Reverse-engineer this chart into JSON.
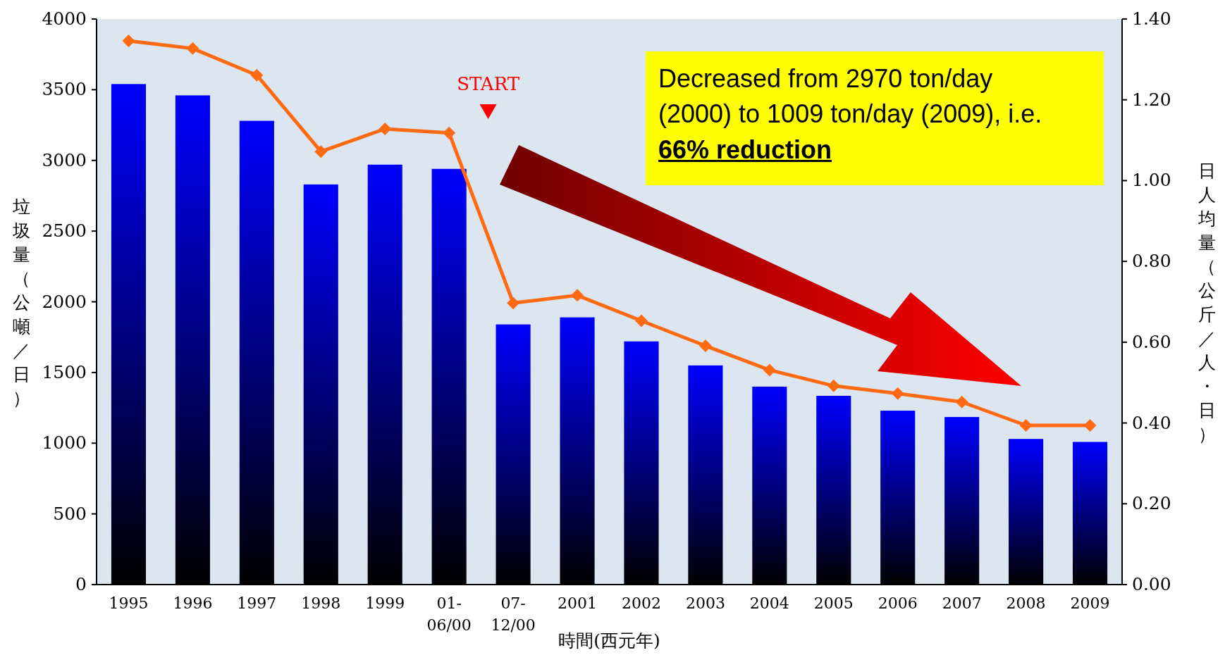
{
  "chart_data": {
    "type": "bar",
    "xlabel": "時間(西元年)",
    "ylabel": "垃圾量（公噸／日）",
    "y2label": "日人均量（公斤／人・日）",
    "categories": [
      "1995",
      "1996",
      "1997",
      "1998",
      "1999",
      "01-\n06/00",
      "07-\n12/00",
      "2001",
      "2002",
      "2003",
      "2004",
      "2005",
      "2006",
      "2007",
      "2008",
      "2009"
    ],
    "series": [
      {
        "color": "#0000ff",
        "values": [
          3540,
          3460,
          3280,
          2830,
          2970,
          2940,
          1840,
          1890,
          1720,
          1550,
          1400,
          1335,
          1230,
          1185,
          1030,
          1009
        ]
      },
      {
        "type": "line",
        "axis": "y2",
        "color": "#ff6a13",
        "values": [
          1.346,
          1.327,
          1.261,
          1.072,
          1.128,
          1.118,
          0.697,
          0.716,
          0.653,
          0.591,
          0.531,
          0.492,
          0.473,
          0.452,
          0.394,
          0.394
        ]
      }
    ],
    "ylim": [
      0,
      4000
    ],
    "yticks": [
      0,
      500,
      1000,
      1500,
      2000,
      2500,
      3000,
      3500,
      4000
    ],
    "y2lim": [
      0,
      1.4
    ],
    "y2ticks": [
      {
        "value": 0,
        "label": "0.00"
      },
      {
        "value": 0.2,
        "label": "0.20"
      },
      {
        "value": 0.4,
        "label": "0.40"
      },
      {
        "value": 0.6,
        "label": "0.60"
      },
      {
        "value": 0.8,
        "label": "0.80"
      },
      {
        "value": 1.0,
        "label": "1.00"
      },
      {
        "value": 1.2,
        "label": "1.20"
      },
      {
        "value": 1.4,
        "label": "1.40"
      }
    ],
    "marker": "diamond",
    "grid": false,
    "annotations": [
      "START",
      "Decreased from 2970 ton/day (2000) to 1009 ton/day (2009), i.e.",
      "66% reduction"
    ]
  }
}
